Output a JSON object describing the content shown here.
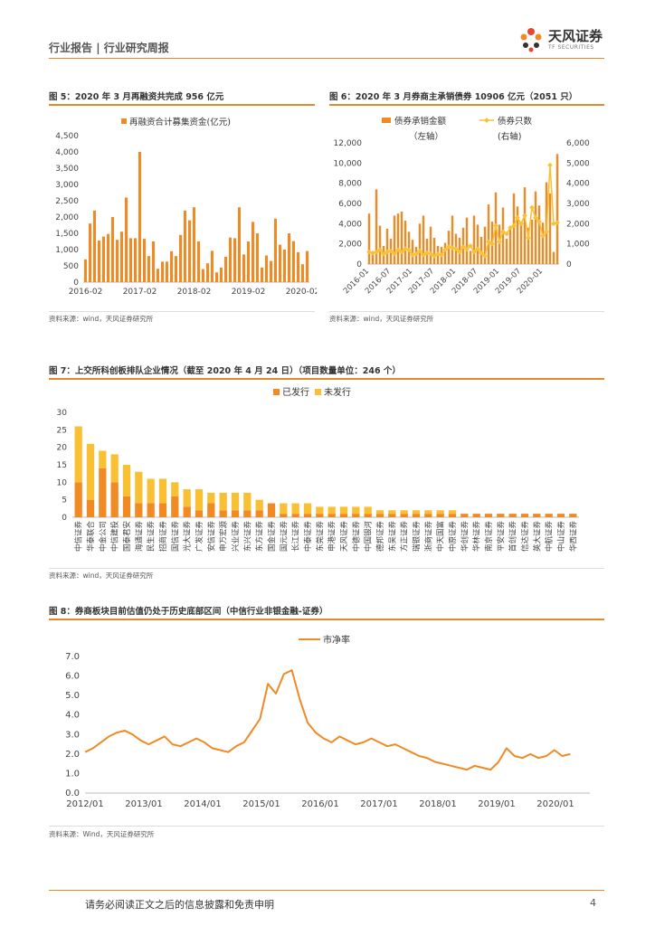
{
  "header": {
    "report_type": "行业报告",
    "report_subtype": "行业研究周报",
    "brand_name": "天风证券",
    "brand_sub": "TF SECURITIES"
  },
  "colors": {
    "accent": "#e08a2c",
    "orange": "#f08a24",
    "yellow": "#f9c033"
  },
  "figures": {
    "fig5": {
      "title": "图 5：2020 年 3 月再融资共完成 956 亿元",
      "source": "资料来源：wind，天风证券研究所"
    },
    "fig6": {
      "title": "图 6：2020 年 3 月券商主承销债券 10906 亿元（2051 只）",
      "source": "资料来源：wind，天风证券研究所"
    },
    "fig7": {
      "title": "图 7：上交所科创板排队企业情况（截至 2020 年 4 月 24 日）（项目数量单位：246 个）",
      "source": "资料来源：wind，天风证券研究所"
    },
    "fig8": {
      "title": "图 8：券商板块目前估值仍处于历史底部区间（中信行业非银金融-证券）",
      "source": "资料来源：Wind，天风证券研究所"
    }
  },
  "chart_data": [
    {
      "type": "bar",
      "legend": "再融资合计募集资金(亿元)",
      "ylim": [
        0,
        4500
      ],
      "yticks": [
        "4,500",
        "4,000",
        "3,500",
        "3,000",
        "2,500",
        "2,000",
        "1,500",
        "1,000",
        "500",
        "0"
      ],
      "xticks": [
        "2016-02",
        "2017-02",
        "2018-02",
        "2019-02",
        "2020-02"
      ],
      "values": [
        700,
        1800,
        2200,
        1280,
        1400,
        1480,
        2000,
        1300,
        1550,
        2600,
        1350,
        1350,
        4000,
        1330,
        800,
        1250,
        410,
        630,
        630,
        950,
        800,
        1450,
        2200,
        1900,
        2300,
        1250,
        400,
        580,
        960,
        300,
        450,
        780,
        1370,
        1350,
        2300,
        850,
        1250,
        1850,
        1500,
        450,
        820,
        650,
        1950,
        1150,
        1000,
        1500,
        1260,
        920,
        550,
        956
      ]
    },
    {
      "type": "bar",
      "legend_bar": "债券承销金额",
      "legend_bar_axis": "（左轴）",
      "legend_line": "债券只数",
      "legend_line_axis": "(右轴)",
      "ylim_left": [
        0,
        12000
      ],
      "ylim_right": [
        0,
        6000
      ],
      "yticks_left": [
        "12,000",
        "10,000",
        "8,000",
        "6,000",
        "4,000",
        "2,000",
        "0"
      ],
      "yticks_right": [
        "6,000",
        "5,000",
        "4,000",
        "3,000",
        "2,000",
        "1,000",
        "0"
      ],
      "xticks": [
        "2016-01",
        "2016-07",
        "2017-01",
        "2017-07",
        "2018-01",
        "2018-07",
        "2019-01",
        "2019-07",
        "2020-01"
      ],
      "amounts": [
        5000,
        1200,
        7400,
        3800,
        1800,
        3500,
        2500,
        4800,
        5000,
        5200,
        4300,
        3200,
        2400,
        1700,
        4000,
        4800,
        2500,
        3700,
        2600,
        1800,
        1700,
        2100,
        3300,
        4800,
        3000,
        2600,
        3600,
        4600,
        1300,
        4800,
        3900,
        2700,
        3700,
        5900,
        4200,
        7100,
        3900,
        5600,
        2500,
        3700,
        7000,
        5700,
        4100,
        7600,
        3600,
        4400,
        7200,
        5800,
        4100,
        8100,
        7000,
        1200,
        10906
      ],
      "counts": [
        600,
        550,
        600,
        700,
        500,
        600,
        650,
        500,
        700,
        600,
        750,
        700,
        450,
        500,
        650,
        450,
        550,
        500,
        400,
        500,
        450,
        700,
        850,
        800,
        750,
        600,
        850,
        750,
        900,
        600,
        750,
        550,
        400,
        1100,
        1000,
        1900,
        1100,
        1600,
        1500,
        1800,
        1900,
        2300,
        2000,
        2400,
        1300,
        2800,
        2300,
        2100,
        1400,
        1600,
        4900,
        2000,
        2051
      ]
    },
    {
      "type": "bar",
      "stacked": true,
      "legend_issued": "已发行",
      "legend_unissued": "未发行",
      "ylim": [
        0,
        30
      ],
      "yticks": [
        "30",
        "25",
        "20",
        "15",
        "10",
        "5",
        "0"
      ],
      "categories": [
        "中信证券",
        "华泰联合",
        "中金公司",
        "中信建投",
        "国泰君安",
        "海通证券",
        "民生证券",
        "招商证券",
        "国信证券",
        "光大证券",
        "广发证券",
        "安信证券",
        "申万宏源",
        "兴业证券",
        "东兴证券",
        "东方证券",
        "国金证券",
        "国元证券",
        "长江证券",
        "中泰证券",
        "东莞证券",
        "申港证券",
        "天风证券",
        "中德证券",
        "中国银河",
        "德邦证券",
        "东吴证券",
        "方正证券",
        "瑞银证券",
        "浙商证券",
        "中天国富",
        "中原证券",
        "华创证券",
        "华林证券",
        "南京证券",
        "平安证券",
        "首创证券",
        "信达证券",
        "英大证券",
        "中航证券",
        "中山证券",
        "华西证券"
      ],
      "issued": [
        10,
        5,
        14,
        10,
        6,
        4,
        4,
        4,
        6,
        3,
        2,
        4,
        2,
        2,
        2,
        2,
        4,
        1,
        1,
        1,
        1,
        1,
        1,
        1,
        1,
        1,
        1,
        1,
        1,
        1,
        1,
        1,
        1,
        1,
        1,
        1,
        1,
        1,
        1,
        1,
        1,
        1
      ],
      "unissued": [
        16,
        16,
        5,
        8,
        9,
        9,
        7,
        7,
        4,
        5,
        6,
        3,
        5,
        5,
        5,
        3,
        0,
        3,
        3,
        3,
        2,
        2,
        2,
        2,
        2,
        1,
        1,
        1,
        1,
        1,
        1,
        1,
        0,
        0,
        0,
        0,
        0,
        0,
        0,
        0,
        0,
        0
      ]
    },
    {
      "type": "line",
      "legend": "市净率",
      "ylim": [
        0,
        7
      ],
      "yticks": [
        "7.0",
        "6.0",
        "5.0",
        "4.0",
        "3.0",
        "2.0",
        "1.0",
        "0.0"
      ],
      "xticks": [
        "2012/01",
        "2013/01",
        "2014/01",
        "2015/01",
        "2016/01",
        "2017/01",
        "2018/01",
        "2019/01",
        "2020/01"
      ],
      "x_start": "2012/01",
      "x_end": "2020/04",
      "values": [
        2.1,
        2.3,
        2.6,
        2.9,
        3.1,
        3.2,
        3.0,
        2.7,
        2.5,
        2.7,
        2.9,
        2.5,
        2.4,
        2.6,
        2.8,
        2.6,
        2.3,
        2.2,
        2.1,
        2.4,
        2.6,
        3.2,
        3.8,
        5.6,
        5.1,
        6.1,
        6.3,
        4.8,
        3.6,
        3.1,
        2.8,
        2.6,
        2.9,
        2.7,
        2.5,
        2.6,
        2.8,
        2.6,
        2.4,
        2.5,
        2.3,
        2.1,
        1.9,
        1.8,
        1.6,
        1.5,
        1.4,
        1.3,
        1.2,
        1.4,
        1.3,
        1.2,
        1.6,
        2.3,
        1.9,
        1.8,
        2.0,
        1.8,
        1.9,
        2.2,
        1.9,
        2.0
      ]
    }
  ],
  "footer": {
    "disclaimer": "请务必阅读正文之后的信息披露和免责申明",
    "page": "4"
  }
}
